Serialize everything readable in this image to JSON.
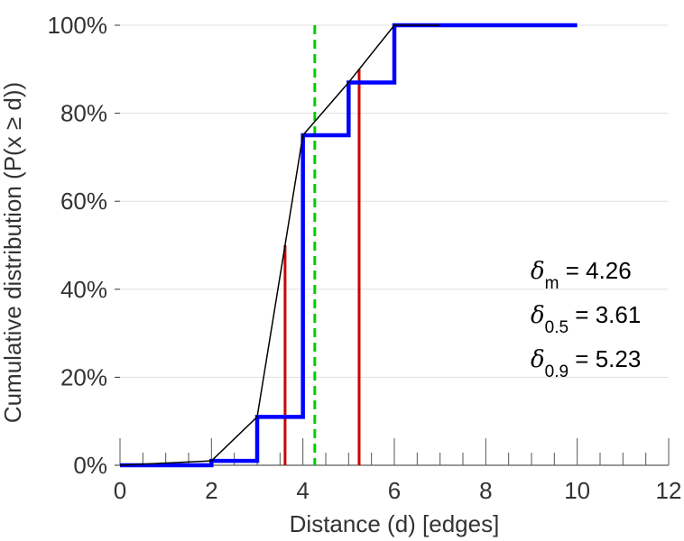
{
  "chart_data": {
    "type": "line",
    "xlabel": "Distance (d) [edges]",
    "ylabel": "Cumulative distribution (P(x ≥ d))",
    "xlim": [
      0,
      12
    ],
    "ylim": [
      0,
      100
    ],
    "x_ticks": [
      0,
      2,
      4,
      6,
      8,
      10,
      12
    ],
    "x_tick_labels": [
      "0",
      "2",
      "4",
      "6",
      "8",
      "10",
      "12"
    ],
    "y_ticks": [
      0,
      20,
      40,
      60,
      80,
      100
    ],
    "y_tick_labels": [
      "0%",
      "20%",
      "40%",
      "60%",
      "80%",
      "100%"
    ],
    "grid": "horizontal",
    "colors": {
      "step": "#0000ff",
      "interp": "#000000",
      "mean": "#00cc00",
      "percentile": "#cc0000"
    },
    "series": [
      {
        "style": "step",
        "x": [
          0,
          2,
          3,
          4,
          5,
          6,
          7,
          10
        ],
        "y": [
          0,
          1,
          11,
          75,
          87,
          100,
          100,
          100
        ]
      },
      {
        "style": "line",
        "x": [
          0,
          2,
          3,
          4,
          5,
          6,
          7
        ],
        "y": [
          0,
          1,
          11,
          75,
          87,
          100,
          100
        ]
      }
    ],
    "markers": [
      {
        "kind": "mean",
        "x": 4.26,
        "style": "dashed"
      },
      {
        "kind": "percentile",
        "x": 3.61,
        "y": 50
      },
      {
        "kind": "percentile",
        "x": 5.23,
        "y": 90
      }
    ],
    "annotations": [
      {
        "symbol": "δ",
        "sub": "m",
        "text": "= 4.26"
      },
      {
        "symbol": "δ",
        "sub": "0.5",
        "text": "= 3.61"
      },
      {
        "symbol": "δ",
        "sub": "0.9",
        "text": "= 5.23"
      }
    ]
  }
}
